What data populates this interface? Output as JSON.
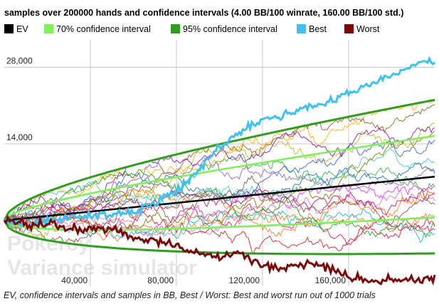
{
  "chart_data": {
    "type": "line",
    "title": "samples over 200000 hands and confidence intervals (4.00 BB/100 winrate, 160.00 BB/100 std.)",
    "caption": "EV, confidence intervals and samples in BB, Best / Worst: Best and worst run out of 1000 trials",
    "watermark": [
      "Pokercy",
      "Variance simulator"
    ],
    "legend": [
      {
        "label": "EV",
        "color": "#000000"
      },
      {
        "label": "70% confidence interval",
        "color": "#7ff05a"
      },
      {
        "label": "95% confidence interval",
        "color": "#2f9e1f"
      },
      {
        "label": "Best",
        "color": "#3ec2ee"
      },
      {
        "label": "Worst",
        "color": "#7a0a0a"
      }
    ],
    "xlim": [
      0,
      200000
    ],
    "ylim": [
      -12000,
      33000
    ],
    "x_ticks": [
      {
        "value": 40000,
        "label": "40,000"
      },
      {
        "value": 80000,
        "label": "80,000"
      },
      {
        "value": 120000,
        "label": "120,000"
      },
      {
        "value": 160000,
        "label": "160,000"
      }
    ],
    "y_ticks": [
      {
        "value": 14000,
        "label": "14,000"
      },
      {
        "value": 28000,
        "label": "28,000"
      }
    ],
    "winrate_bb_per_100": 4.0,
    "std_bb_per_100": 160.0,
    "hands": 200000,
    "best_points": [
      [
        0,
        0
      ],
      [
        10000,
        -800
      ],
      [
        20000,
        -400
      ],
      [
        30000,
        600
      ],
      [
        40000,
        900
      ],
      [
        50000,
        1100
      ],
      [
        60000,
        1700
      ],
      [
        70000,
        3100
      ],
      [
        80000,
        5400
      ],
      [
        90000,
        9100
      ],
      [
        100000,
        13200
      ],
      [
        110000,
        16300
      ],
      [
        120000,
        18400
      ],
      [
        130000,
        19200
      ],
      [
        140000,
        20700
      ],
      [
        150000,
        21300
      ],
      [
        160000,
        23400
      ],
      [
        170000,
        24800
      ],
      [
        180000,
        26500
      ],
      [
        190000,
        28300
      ],
      [
        200000,
        29400
      ]
    ],
    "worst_points": [
      [
        0,
        0
      ],
      [
        10000,
        -700
      ],
      [
        20000,
        -800
      ],
      [
        30000,
        -1200
      ],
      [
        40000,
        -1500
      ],
      [
        50000,
        -1400
      ],
      [
        60000,
        -3200
      ],
      [
        70000,
        -3600
      ],
      [
        80000,
        -4800
      ],
      [
        90000,
        -5800
      ],
      [
        100000,
        -6900
      ],
      [
        110000,
        -6300
      ],
      [
        120000,
        -8200
      ],
      [
        130000,
        -8800
      ],
      [
        140000,
        -7700
      ],
      [
        150000,
        -8600
      ],
      [
        160000,
        -10200
      ],
      [
        170000,
        -11300
      ],
      [
        180000,
        -10600
      ],
      [
        190000,
        -10800
      ],
      [
        200000,
        -10900
      ]
    ],
    "sample_colors": [
      "#e6194b",
      "#f58231",
      "#ffb300",
      "#bcbd22",
      "#3cb44b",
      "#46c8c8",
      "#4363d8",
      "#911eb4",
      "#f032e6",
      "#9a6324",
      "#808000",
      "#1f77b4",
      "#e377c2",
      "#17becf",
      "#ff7f0e",
      "#9467bd",
      "#8c564b",
      "#2ca02c",
      "#d62728",
      "#c71585"
    ]
  }
}
